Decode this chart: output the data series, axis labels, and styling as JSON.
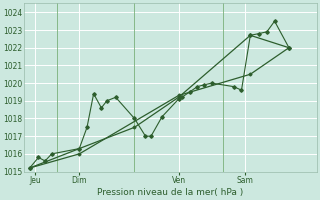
{
  "xlabel": "Pression niveau de la mer( hPa )",
  "bg_color": "#cce8df",
  "grid_color": "#ffffff",
  "line_color": "#2d5e2d",
  "ylim": [
    1015,
    1024.5
  ],
  "yticks": [
    1015,
    1016,
    1017,
    1018,
    1019,
    1020,
    1021,
    1022,
    1023,
    1024
  ],
  "xtick_labels": [
    "Jeu",
    "Dim",
    "Ven",
    "Sam"
  ],
  "xtick_positions": [
    0.5,
    4.5,
    13.5,
    19.5
  ],
  "vline_positions": [
    2.5,
    9.5,
    17.5
  ],
  "xlim": [
    -0.5,
    26
  ],
  "series1_x": [
    0.0,
    0.8,
    1.4,
    2.0,
    4.5,
    5.2,
    5.8,
    6.5,
    7.0,
    7.8,
    9.5,
    10.5,
    11.0,
    12.0,
    13.5,
    13.8,
    14.5,
    15.2,
    15.8,
    16.5,
    18.5,
    19.2,
    20.0,
    20.8,
    21.5,
    22.2,
    23.5
  ],
  "series1_y": [
    1015.2,
    1015.8,
    1015.6,
    1016.0,
    1016.3,
    1017.5,
    1019.4,
    1018.6,
    1019.0,
    1019.2,
    1018.0,
    1017.0,
    1017.0,
    1018.1,
    1019.1,
    1019.2,
    1019.5,
    1019.8,
    1019.9,
    1020.0,
    1019.8,
    1019.6,
    1022.7,
    1022.8,
    1022.9,
    1023.5,
    1022.0
  ],
  "series2_x": [
    0.0,
    4.5,
    9.5,
    13.5,
    20.0,
    23.5
  ],
  "series2_y": [
    1015.2,
    1016.3,
    1017.5,
    1019.2,
    1022.7,
    1022.0
  ],
  "series3_x": [
    0.0,
    4.5,
    13.5,
    20.0,
    23.5
  ],
  "series3_y": [
    1015.2,
    1016.0,
    1019.3,
    1020.5,
    1022.0
  ]
}
